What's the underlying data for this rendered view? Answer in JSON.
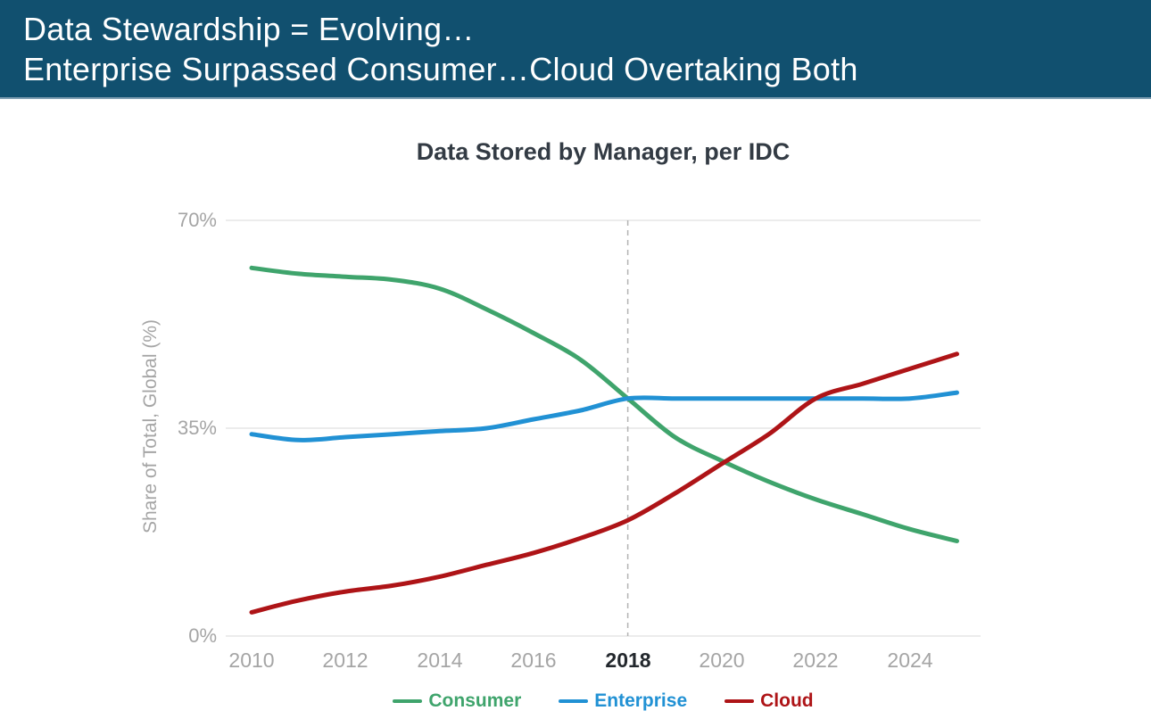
{
  "header": {
    "line1": "Data Stewardship = Evolving…",
    "line2": "Enterprise Surpassed Consumer…Cloud Overtaking Both",
    "bg_color": "#11506F",
    "divider_color": "#7E9DB1",
    "text_color": "#FFFFFF"
  },
  "chart_data": {
    "type": "line",
    "title": "Data Stored by Manager, per IDC",
    "xlabel": "",
    "ylabel": "Share of Total, Global (%)",
    "x": [
      2010,
      2011,
      2012,
      2013,
      2014,
      2015,
      2016,
      2017,
      2018,
      2019,
      2020,
      2021,
      2022,
      2023,
      2024,
      2025
    ],
    "series": [
      {
        "name": "Consumer",
        "color": "#3FA46C",
        "values": [
          62,
          61,
          60.5,
          60,
          58.5,
          55,
          51,
          46.5,
          40,
          33.5,
          29.5,
          26,
          23,
          20.5,
          18,
          16
        ]
      },
      {
        "name": "Enterprise",
        "color": "#2191D4",
        "values": [
          34,
          33,
          33.5,
          34,
          34.5,
          35,
          36.5,
          38,
          40,
          40,
          40,
          40,
          40,
          40,
          40,
          41
        ]
      },
      {
        "name": "Cloud",
        "color": "#AE1417",
        "values": [
          4,
          6,
          7.5,
          8.5,
          10,
          12,
          14,
          16.5,
          19.5,
          24,
          29,
          34,
          40,
          42.5,
          45,
          47.5
        ]
      }
    ],
    "ylim": [
      0,
      70
    ],
    "y_ticks": [
      {
        "value": 70,
        "label": "70%"
      },
      {
        "value": 35,
        "label": "35%"
      },
      {
        "value": 0,
        "label": "0%"
      }
    ],
    "x_ticks": [
      {
        "value": 2010,
        "label": "2010",
        "emphasis": false
      },
      {
        "value": 2012,
        "label": "2012",
        "emphasis": false
      },
      {
        "value": 2014,
        "label": "2014",
        "emphasis": false
      },
      {
        "value": 2016,
        "label": "2016",
        "emphasis": false
      },
      {
        "value": 2018,
        "label": "2018",
        "emphasis": true
      },
      {
        "value": 2020,
        "label": "2020",
        "emphasis": false
      },
      {
        "value": 2022,
        "label": "2022",
        "emphasis": false
      },
      {
        "value": 2024,
        "label": "2024",
        "emphasis": false
      }
    ],
    "reference_line_x": 2018,
    "grid": "horizontal",
    "grid_color": "#D9D9D9",
    "reference_line_color": "#B3B3B3",
    "legend_position": "bottom",
    "legend_entries": [
      "Consumer",
      "Enterprise",
      "Cloud"
    ]
  }
}
